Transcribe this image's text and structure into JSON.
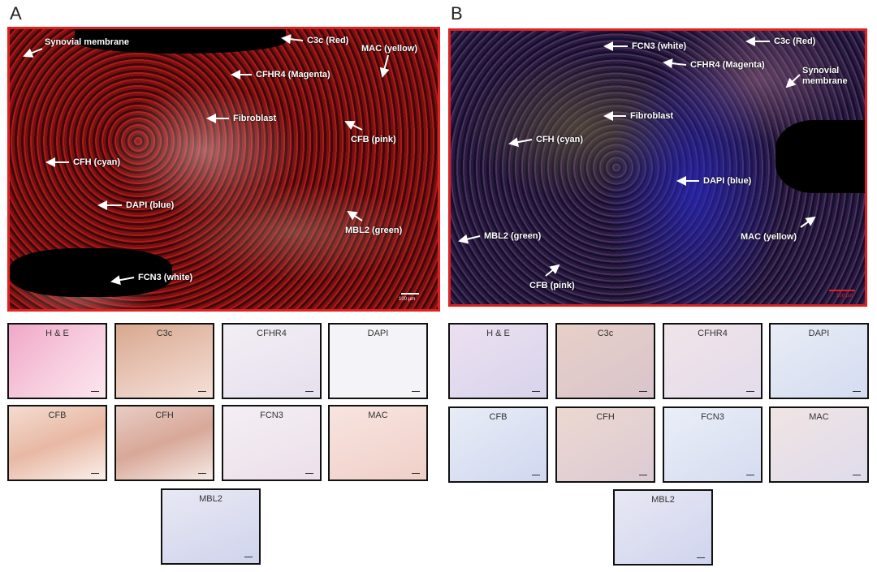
{
  "panels": [
    {
      "letter": "A",
      "labels": [
        "Synovial membrane",
        "C3c (Red)",
        "MAC (yellow)",
        "CFHR4 (Magenta)",
        "Fibroblast",
        "CFB (pink)",
        "CFH (cyan)",
        "DAPI (blue)",
        "MBL2 (green)",
        "FCN3 (white)"
      ],
      "scale_bar": "100 µm",
      "thumbnails": [
        "H & E",
        "C3c",
        "CFHR4",
        "DAPI",
        "CFB",
        "CFH",
        "FCN3",
        "MAC",
        "MBL2"
      ]
    },
    {
      "letter": "B",
      "labels": [
        "FCN3 (white)",
        "C3c (Red)",
        "CFHR4 (Magenta)",
        "Synovial membrane",
        "Fibroblast",
        "CFH (cyan)",
        "DAPI (blue)",
        "MAC (yellow)",
        "MBL2 (green)",
        "CFB (pink)"
      ],
      "scale_bar": "100 µm",
      "thumbnails": [
        "H & E",
        "C3c",
        "CFHR4",
        "DAPI",
        "CFB",
        "CFH",
        "FCN3",
        "MAC",
        "MBL2"
      ]
    }
  ]
}
